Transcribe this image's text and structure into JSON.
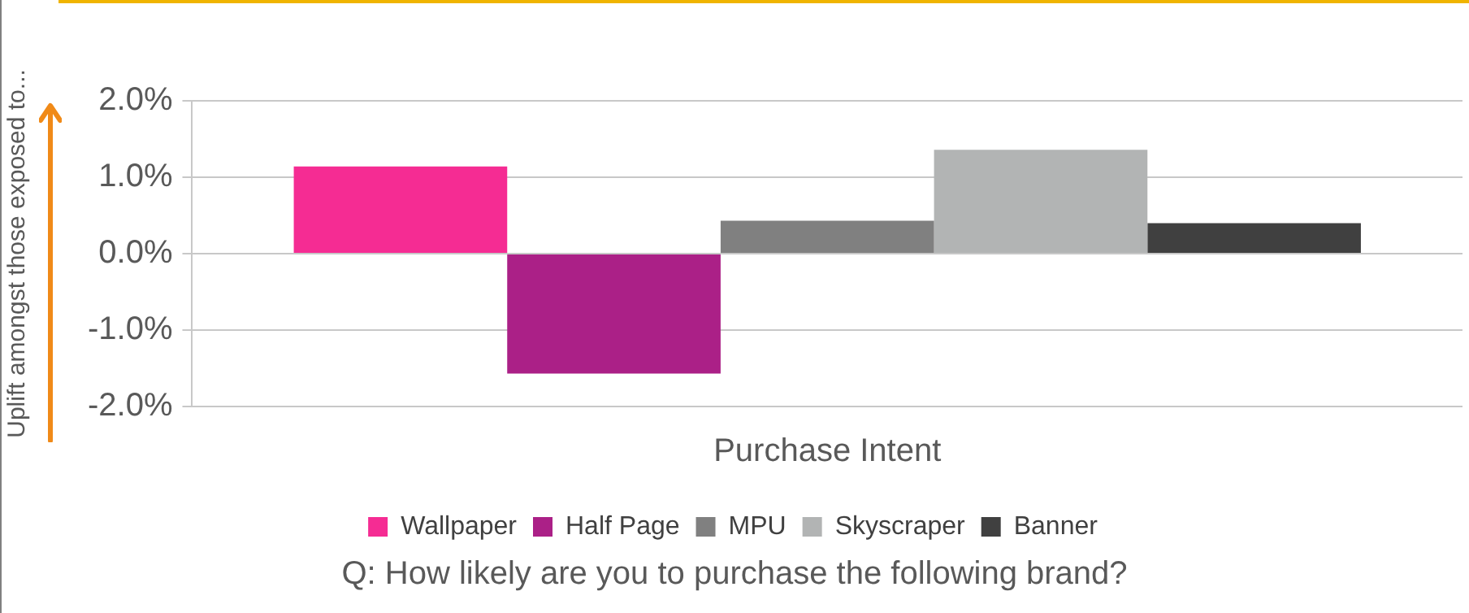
{
  "chart_data": {
    "type": "bar",
    "ylabel": "Uplift amongst those exposed to...",
    "categories": [
      "Purchase Intent"
    ],
    "series": [
      {
        "name": "Wallpaper",
        "color": "#f52c93",
        "values": [
          1.14
        ]
      },
      {
        "name": "Half Page",
        "color": "#ab2087",
        "values": [
          -1.57
        ]
      },
      {
        "name": "MPU",
        "color": "#808080",
        "values": [
          0.43
        ]
      },
      {
        "name": "Skyscraper",
        "color": "#b2b4b4",
        "values": [
          1.36
        ]
      },
      {
        "name": "Banner",
        "color": "#404040",
        "values": [
          0.4
        ]
      }
    ],
    "ylim": [
      -2,
      2
    ],
    "yticks": [
      {
        "value": -2,
        "label": "-2.0%"
      },
      {
        "value": -1,
        "label": "-1.0%"
      },
      {
        "value": 0,
        "label": "0.0%"
      },
      {
        "value": 1,
        "label": "1.0%"
      },
      {
        "value": 2,
        "label": "2.0%"
      }
    ],
    "grid": "y",
    "legend": "bottom",
    "annotations": [
      "Q: How likely are you to purchase the following brand?"
    ]
  }
}
